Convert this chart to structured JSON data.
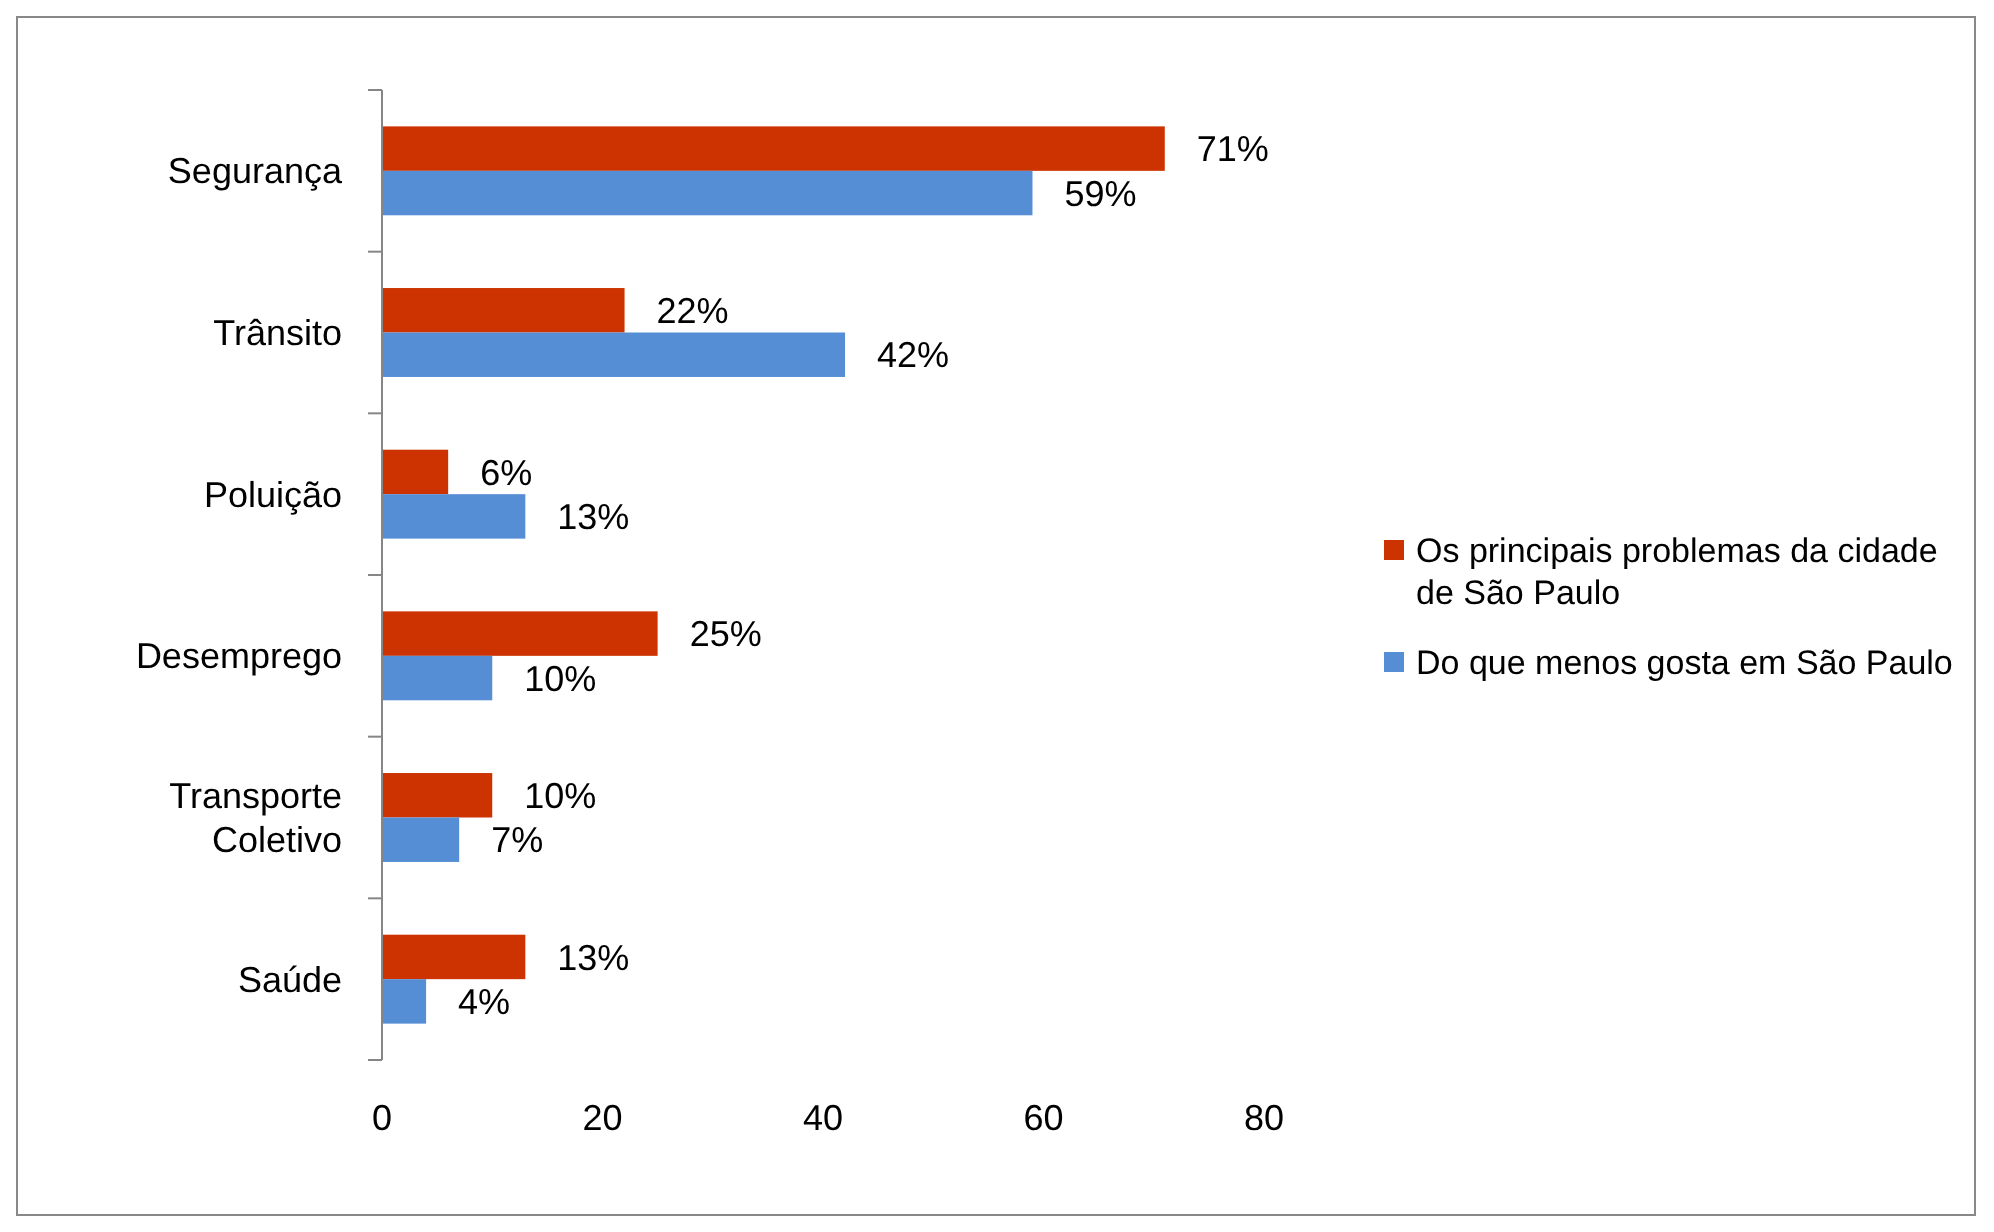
{
  "chart_data": {
    "type": "bar",
    "orientation": "horizontal",
    "categories": [
      "Segurança",
      "Trânsito",
      "Poluição",
      "Desemprego",
      "Transporte Coletivo",
      "Saúde"
    ],
    "series": [
      {
        "name": "Os principais problemas da cidade de São Paulo",
        "color": "#cc3300",
        "values": [
          71,
          22,
          6,
          25,
          10,
          13
        ],
        "value_labels": [
          "71%",
          "22%",
          "6%",
          "25%",
          "10%",
          "13%"
        ]
      },
      {
        "name": "Do que menos gosta em São Paulo",
        "color": "#558ed5",
        "values": [
          59,
          42,
          13,
          10,
          7,
          4
        ],
        "value_labels": [
          "59%",
          "42%",
          "13%",
          "10%",
          "7%",
          "4%"
        ]
      }
    ],
    "xlim": [
      0,
      80
    ],
    "xticks": [
      0,
      20,
      40,
      60,
      80
    ],
    "grid": false,
    "legend": "right"
  }
}
